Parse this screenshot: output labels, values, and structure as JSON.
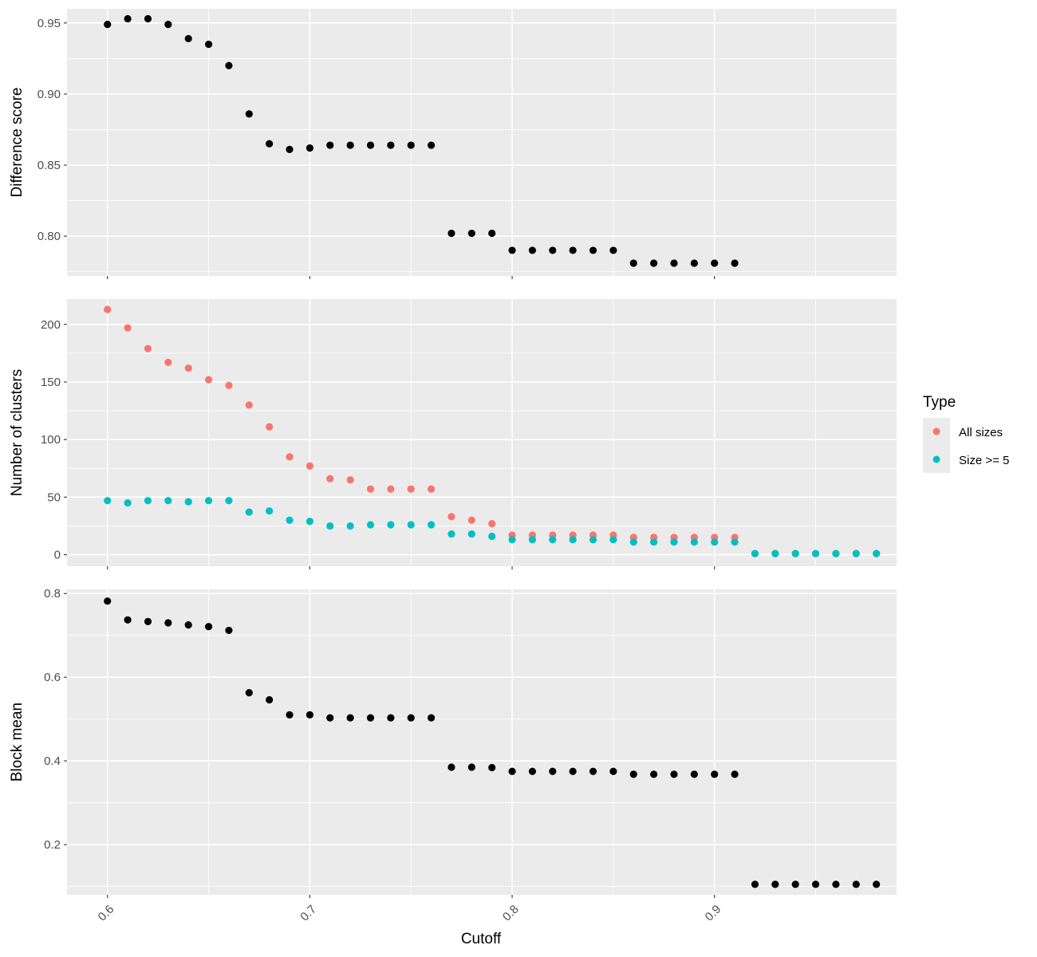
{
  "chart_data": [
    {
      "type": "scatter",
      "panel": "top",
      "ylabel": "Difference score",
      "xlabel": "",
      "xlim": [
        0.58,
        0.99
      ],
      "ylim": [
        0.772,
        0.96
      ],
      "yticks": [
        0.8,
        0.85,
        0.9,
        0.95
      ],
      "ytick_labels": [
        "0.80",
        "0.85",
        "0.90",
        "0.95"
      ],
      "grid": true,
      "series": [
        {
          "color": "#000000",
          "x": [
            0.6,
            0.61,
            0.62,
            0.63,
            0.64,
            0.65,
            0.66,
            0.67,
            0.68,
            0.69,
            0.7,
            0.71,
            0.72,
            0.73,
            0.74,
            0.75,
            0.76,
            0.77,
            0.78,
            0.79,
            0.8,
            0.81,
            0.82,
            0.83,
            0.84,
            0.85,
            0.86,
            0.87,
            0.88,
            0.89,
            0.9,
            0.91
          ],
          "y": [
            0.949,
            0.953,
            0.953,
            0.949,
            0.939,
            0.935,
            0.92,
            0.886,
            0.865,
            0.861,
            0.862,
            0.864,
            0.864,
            0.864,
            0.864,
            0.864,
            0.864,
            0.802,
            0.802,
            0.802,
            0.79,
            0.79,
            0.79,
            0.79,
            0.79,
            0.79,
            0.781,
            0.781,
            0.781,
            0.781,
            0.781,
            0.781
          ]
        }
      ]
    },
    {
      "type": "scatter",
      "panel": "middle",
      "ylabel": "Number of clusters",
      "xlabel": "",
      "xlim": [
        0.58,
        0.99
      ],
      "ylim": [
        -10,
        222
      ],
      "yticks": [
        0,
        50,
        100,
        150,
        200
      ],
      "ytick_labels": [
        "0",
        "50",
        "100",
        "150",
        "200"
      ],
      "grid": true,
      "legend": {
        "title": "Type",
        "position": "right"
      },
      "series": [
        {
          "name": "All sizes",
          "color": "#F8766D",
          "x": [
            0.6,
            0.61,
            0.62,
            0.63,
            0.64,
            0.65,
            0.66,
            0.67,
            0.68,
            0.69,
            0.7,
            0.71,
            0.72,
            0.73,
            0.74,
            0.75,
            0.76,
            0.77,
            0.78,
            0.79,
            0.8,
            0.81,
            0.82,
            0.83,
            0.84,
            0.85,
            0.86,
            0.87,
            0.88,
            0.89,
            0.9,
            0.91,
            0.92,
            0.93,
            0.94,
            0.95,
            0.96,
            0.97,
            0.98
          ],
          "y": [
            213,
            197,
            179,
            167,
            162,
            152,
            147,
            130,
            111,
            85,
            77,
            66,
            65,
            57,
            57,
            57,
            57,
            33,
            30,
            27,
            17,
            17,
            17,
            17,
            17,
            17,
            15,
            15,
            15,
            15,
            15,
            15,
            1,
            1,
            1,
            1,
            1,
            1,
            1
          ]
        },
        {
          "name": "Size >= 5",
          "color": "#00BFC4",
          "x": [
            0.6,
            0.61,
            0.62,
            0.63,
            0.64,
            0.65,
            0.66,
            0.67,
            0.68,
            0.69,
            0.7,
            0.71,
            0.72,
            0.73,
            0.74,
            0.75,
            0.76,
            0.77,
            0.78,
            0.79,
            0.8,
            0.81,
            0.82,
            0.83,
            0.84,
            0.85,
            0.86,
            0.87,
            0.88,
            0.89,
            0.9,
            0.91,
            0.92,
            0.93,
            0.94,
            0.95,
            0.96,
            0.97,
            0.98
          ],
          "y": [
            47,
            45,
            47,
            47,
            46,
            47,
            47,
            37,
            38,
            30,
            29,
            25,
            25,
            26,
            26,
            26,
            26,
            18,
            18,
            16,
            13,
            13,
            13,
            13,
            13,
            13,
            11,
            11,
            11,
            11,
            11,
            11,
            1,
            1,
            1,
            1,
            1,
            1,
            1
          ]
        }
      ]
    },
    {
      "type": "scatter",
      "panel": "bottom",
      "ylabel": "Block mean",
      "xlabel": "Cutoff",
      "xlim": [
        0.58,
        0.99
      ],
      "ylim": [
        0.08,
        0.81
      ],
      "yticks": [
        0.2,
        0.4,
        0.6,
        0.8
      ],
      "ytick_labels": [
        "0.2",
        "0.4",
        "0.6",
        "0.8"
      ],
      "xticks": [
        0.6,
        0.7,
        0.8,
        0.9
      ],
      "xtick_labels": [
        "0.6",
        "0.7",
        "0.8",
        "0.9"
      ],
      "grid": true,
      "series": [
        {
          "color": "#000000",
          "x": [
            0.6,
            0.61,
            0.62,
            0.63,
            0.64,
            0.65,
            0.66,
            0.67,
            0.68,
            0.69,
            0.7,
            0.71,
            0.72,
            0.73,
            0.74,
            0.75,
            0.76,
            0.77,
            0.78,
            0.79,
            0.8,
            0.81,
            0.82,
            0.83,
            0.84,
            0.85,
            0.86,
            0.87,
            0.88,
            0.89,
            0.9,
            0.91,
            0.92,
            0.93,
            0.94,
            0.95,
            0.96,
            0.97,
            0.98
          ],
          "y": [
            0.782,
            0.737,
            0.733,
            0.73,
            0.725,
            0.721,
            0.712,
            0.563,
            0.546,
            0.51,
            0.51,
            0.503,
            0.503,
            0.503,
            0.503,
            0.503,
            0.503,
            0.385,
            0.385,
            0.384,
            0.375,
            0.375,
            0.375,
            0.375,
            0.375,
            0.375,
            0.368,
            0.368,
            0.368,
            0.368,
            0.368,
            0.368,
            0.105,
            0.105,
            0.105,
            0.105,
            0.105,
            0.105,
            0.105
          ]
        }
      ]
    }
  ],
  "colors": {
    "panel_background": "#EBEBEB",
    "grid": "#FFFFFF",
    "axis_text": "#4D4D4D"
  }
}
